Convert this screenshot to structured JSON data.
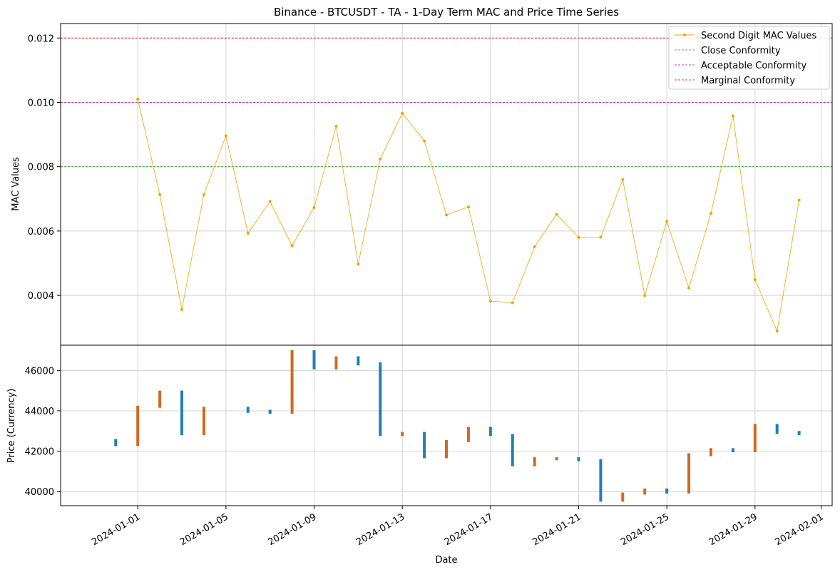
{
  "chart_data": {
    "type": "line",
    "title": "Binance - BTCUSDT - TA - 1-Day Term MAC and Price Time Series",
    "xlabel": "Date",
    "top_panel": {
      "ylabel": "MAC Values",
      "ylim": [
        0.00245,
        0.01245
      ],
      "yticks": [
        0.004,
        0.006,
        0.008,
        0.01,
        0.012
      ],
      "ytick_labels": [
        "0.004",
        "0.006",
        "0.008",
        "0.010",
        "0.012"
      ],
      "grid": true,
      "legend_placement": "top-right",
      "series": [
        {
          "name": "Second Digit MAC Values",
          "color": "#f0a500",
          "x": [
            "2024-01-01",
            "2024-01-02",
            "2024-01-03",
            "2024-01-04",
            "2024-01-05",
            "2024-01-06",
            "2024-01-07",
            "2024-01-08",
            "2024-01-09",
            "2024-01-10",
            "2024-01-11",
            "2024-01-12",
            "2024-01-13",
            "2024-01-14",
            "2024-01-15",
            "2024-01-16",
            "2024-01-17",
            "2024-01-18",
            "2024-01-19",
            "2024-01-20",
            "2024-01-21",
            "2024-01-22",
            "2024-01-23",
            "2024-01-24",
            "2024-01-25",
            "2024-01-26",
            "2024-01-27",
            "2024-01-28",
            "2024-01-29",
            "2024-01-30",
            "2024-01-31"
          ],
          "values": [
            0.0101,
            0.00713,
            0.00356,
            0.00713,
            0.00896,
            0.00593,
            0.00692,
            0.00554,
            0.00673,
            0.00926,
            0.00497,
            0.00824,
            0.00966,
            0.0088,
            0.0065,
            0.00675,
            0.00382,
            0.00377,
            0.00551,
            0.00652,
            0.0058,
            0.00581,
            0.0076,
            0.00399,
            0.0063,
            0.00423,
            0.00655,
            0.00958,
            0.00449,
            0.00289,
            0.00696
          ]
        }
      ],
      "reference_lines": [
        {
          "name": "Close Conformity",
          "value": 0.008,
          "color": "#2ca02c"
        },
        {
          "name": "Acceptable Conformity",
          "value": 0.01,
          "color": "#b000b0"
        },
        {
          "name": "Marginal Conformity",
          "value": 0.012,
          "color": "#e00000"
        }
      ]
    },
    "bottom_panel": {
      "type": "candlestick",
      "ylabel": "Price (Currency)",
      "ylim": [
        39300,
        47250
      ],
      "yticks": [
        40000,
        42000,
        44000,
        46000
      ],
      "ytick_labels": [
        "40000",
        "42000",
        "44000",
        "46000"
      ],
      "grid": true,
      "up_color": "#d2691e",
      "down_color": "#1f7fb4",
      "candles": [
        {
          "date": "2023-12-31",
          "open": 42600,
          "close": 42250
        },
        {
          "date": "2024-01-01",
          "open": 42250,
          "close": 44250
        },
        {
          "date": "2024-01-02",
          "open": 44150,
          "close": 45000
        },
        {
          "date": "2024-01-03",
          "open": 45000,
          "close": 42800
        },
        {
          "date": "2024-01-04",
          "open": 42800,
          "close": 44200
        },
        {
          "date": "2024-01-06",
          "open": 44200,
          "close": 43900
        },
        {
          "date": "2024-01-07",
          "open": 44050,
          "close": 43850
        },
        {
          "date": "2024-01-08",
          "open": 43850,
          "close": 47000
        },
        {
          "date": "2024-01-09",
          "open": 47000,
          "close": 46050
        },
        {
          "date": "2024-01-10",
          "open": 46050,
          "close": 46700
        },
        {
          "date": "2024-01-11",
          "open": 46700,
          "close": 46250
        },
        {
          "date": "2024-01-12",
          "open": 46400,
          "close": 42750
        },
        {
          "date": "2024-01-13",
          "open": 42750,
          "close": 42950
        },
        {
          "date": "2024-01-14",
          "open": 42950,
          "close": 41650
        },
        {
          "date": "2024-01-15",
          "open": 41650,
          "close": 42550
        },
        {
          "date": "2024-01-16",
          "open": 42450,
          "close": 43200
        },
        {
          "date": "2024-01-17",
          "open": 43200,
          "close": 42750
        },
        {
          "date": "2024-01-18",
          "open": 42850,
          "close": 41250
        },
        {
          "date": "2024-01-19",
          "open": 41250,
          "close": 41700
        },
        {
          "date": "2024-01-20",
          "open": 41550,
          "close": 41700
        },
        {
          "date": "2024-01-21",
          "open": 41700,
          "close": 41500
        },
        {
          "date": "2024-01-22",
          "open": 41600,
          "close": 39500
        },
        {
          "date": "2024-01-23",
          "open": 39500,
          "close": 39950
        },
        {
          "date": "2024-01-24",
          "open": 39850,
          "close": 40150
        },
        {
          "date": "2024-01-25",
          "open": 40150,
          "close": 39900
        },
        {
          "date": "2024-01-26",
          "open": 39900,
          "close": 41900
        },
        {
          "date": "2024-01-27",
          "open": 41750,
          "close": 42150
        },
        {
          "date": "2024-01-28",
          "open": 42150,
          "close": 41950
        },
        {
          "date": "2024-01-29",
          "open": 41950,
          "close": 43350
        },
        {
          "date": "2024-01-30",
          "open": 43350,
          "close": 42850
        },
        {
          "date": "2024-01-31",
          "open": 43000,
          "close": 42800
        }
      ]
    },
    "x_axis": {
      "xlim": [
        "2023-12-28T12:00",
        "2024-02-01T12:00"
      ],
      "ticks": [
        "2024-01-01",
        "2024-01-05",
        "2024-01-09",
        "2024-01-13",
        "2024-01-17",
        "2024-01-21",
        "2024-01-25",
        "2024-01-29",
        "2024-02-01"
      ],
      "tick_labels": [
        "2024-01-01",
        "2024-01-05",
        "2024-01-09",
        "2024-01-13",
        "2024-01-17",
        "2024-01-21",
        "2024-01-25",
        "2024-01-29",
        "2024-02-01"
      ]
    }
  }
}
